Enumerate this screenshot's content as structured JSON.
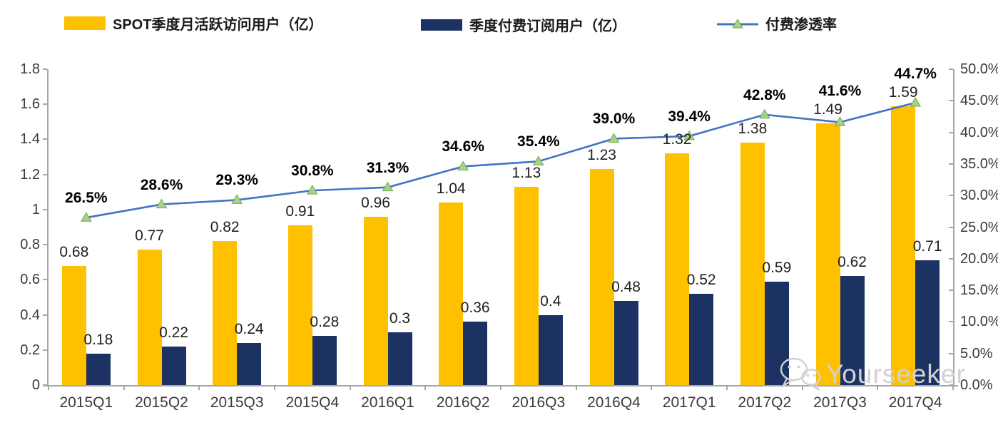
{
  "watermark": {
    "text": "Yourseeker",
    "icon": "wechat-icon",
    "color": "#d2d2d2"
  },
  "chart_data": {
    "type": "bar+line",
    "legend_position": "top",
    "grid": false,
    "categories": [
      "2015Q1",
      "2015Q2",
      "2015Q3",
      "2015Q4",
      "2016Q1",
      "2016Q2",
      "2016Q3",
      "2016Q4",
      "2017Q1",
      "2017Q2",
      "2017Q3",
      "2017Q4"
    ],
    "series": [
      {
        "name": "SPOT季度月活跃访问用户（亿）",
        "type": "bar",
        "axis": "left",
        "color": "#FFC000",
        "values": [
          0.68,
          0.77,
          0.82,
          0.91,
          0.96,
          1.04,
          1.13,
          1.23,
          1.32,
          1.38,
          1.49,
          1.59
        ],
        "labels": [
          "0.68",
          "0.77",
          "0.82",
          "0.91",
          "0.96",
          "1.04",
          "1.13",
          "1.23",
          "1.32",
          "1.38",
          "1.49",
          "1.59"
        ]
      },
      {
        "name": "季度付费订阅用户（亿）",
        "type": "bar",
        "axis": "left",
        "color": "#1B3263",
        "values": [
          0.18,
          0.22,
          0.24,
          0.28,
          0.3,
          0.36,
          0.4,
          0.48,
          0.52,
          0.59,
          0.62,
          0.71
        ],
        "labels": [
          "0.18",
          "0.22",
          "0.24",
          "0.28",
          "0.3",
          "0.36",
          "0.4",
          "0.48",
          "0.52",
          "0.59",
          "0.62",
          "0.71"
        ]
      },
      {
        "name": "付费渗透率",
        "type": "line",
        "axis": "right",
        "color": "#4472C4",
        "marker": "triangle",
        "marker_fill": "#A9D18E",
        "marker_stroke": "#70AD47",
        "values": [
          26.5,
          28.6,
          29.3,
          30.8,
          31.3,
          34.6,
          35.4,
          39.0,
          39.4,
          42.8,
          41.6,
          44.7
        ],
        "labels": [
          "26.5%",
          "28.6%",
          "29.3%",
          "30.8%",
          "31.3%",
          "34.6%",
          "35.4%",
          "39.0%",
          "39.4%",
          "42.8%",
          "41.6%",
          "44.7%"
        ]
      }
    ],
    "left_axis": {
      "min": 0,
      "max": 1.8,
      "step": 0.2,
      "ticks": [
        "0",
        "0.2",
        "0.4",
        "0.6",
        "0.8",
        "1",
        "1.2",
        "1.4",
        "1.6",
        "1.8"
      ]
    },
    "right_axis": {
      "min": 0,
      "max": 50,
      "step": 5,
      "ticks": [
        "0.0%",
        "5.0%",
        "10.0%",
        "15.0%",
        "20.0%",
        "25.0%",
        "30.0%",
        "35.0%",
        "40.0%",
        "45.0%",
        "50.0%"
      ]
    },
    "axis_color": "#a6a6a6"
  }
}
